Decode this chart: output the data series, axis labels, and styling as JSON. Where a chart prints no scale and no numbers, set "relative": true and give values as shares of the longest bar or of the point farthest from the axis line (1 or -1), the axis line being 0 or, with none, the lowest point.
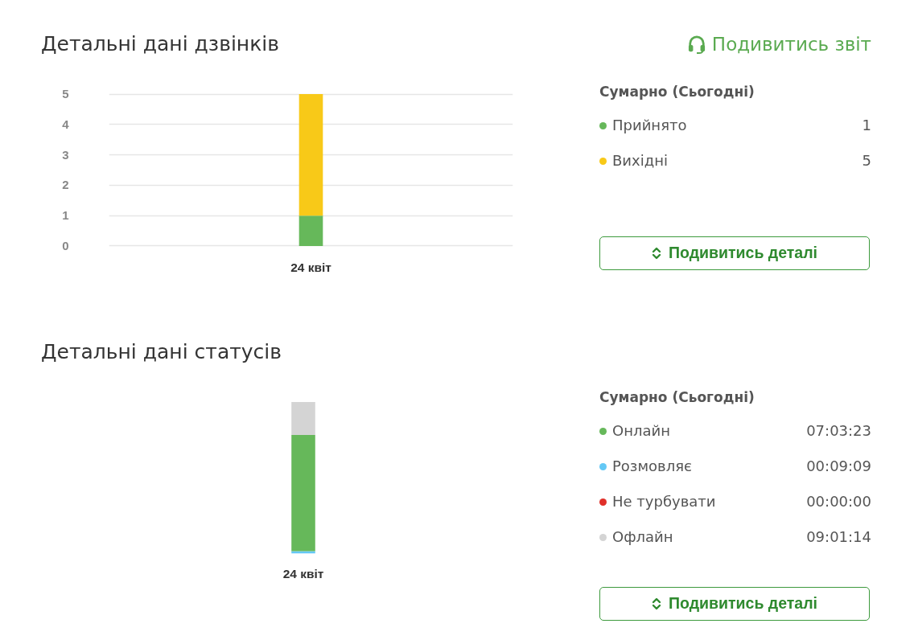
{
  "chart_data": [
    {
      "type": "bar",
      "title": "Детальні дані дзвінків",
      "annotations": [
        "Подивитись звіт"
      ],
      "categories": [
        "24 квіт"
      ],
      "stacked": true,
      "series": [
        {
          "color": "#66b85a",
          "values": [
            1
          ]
        },
        {
          "color": "#f8c918",
          "values": [
            4
          ]
        }
      ],
      "ylim": [
        0,
        5
      ],
      "yticks": [
        0,
        1,
        2,
        3,
        4,
        5
      ],
      "grid": "y"
    },
    {
      "type": "other",
      "title": "Сумарно (Сьогодні)",
      "categories": [
        "Прийнято",
        "Вихідні"
      ],
      "value_labels": [
        "1",
        "5"
      ],
      "colors": [
        "#66b85a",
        "#f8c918"
      ],
      "annotations": [
        "Подивитись деталі"
      ]
    },
    {
      "type": "bar",
      "title": "Детальні дані статусів",
      "categories": [
        "24 квіт"
      ],
      "stacked": true,
      "relative": true,
      "series": [
        {
          "color": "#64c8f5",
          "values": [
            0.016
          ]
        },
        {
          "color": "#66b85a",
          "values": [
            0.766
          ]
        },
        {
          "color": "#d4d4d4",
          "values": [
            0.218
          ]
        }
      ]
    },
    {
      "type": "other",
      "title": "Сумарно (Сьогодні)",
      "categories": [
        "Онлайн",
        "Розмовляє",
        "Не турбувати",
        "Офлайн"
      ],
      "value_labels": [
        "07:03:23",
        "00:09:09",
        "00:00:00",
        "09:01:14"
      ],
      "colors": [
        "#66b85a",
        "#64c8f5",
        "#e0302a",
        "#d4d4d4"
      ],
      "annotations": [
        "Подивитись деталі"
      ]
    }
  ]
}
